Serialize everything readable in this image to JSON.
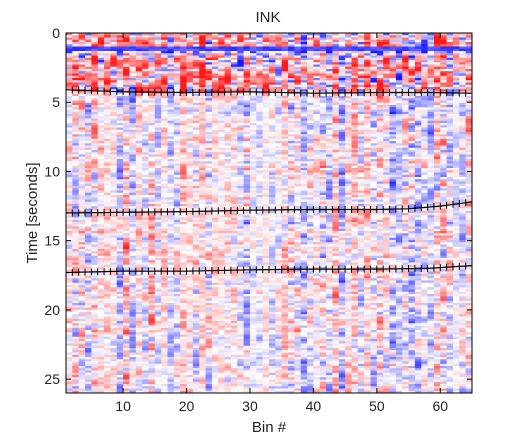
{
  "chart_data": {
    "type": "heatmap",
    "title": "INK",
    "xlabel": "Bin #",
    "ylabel": "Time [seconds]",
    "xlim": [
      1,
      65
    ],
    "ylim": [
      0,
      26
    ],
    "y_reversed": true,
    "xticks": [
      10,
      20,
      30,
      40,
      50,
      60
    ],
    "yticks": [
      0,
      5,
      10,
      15,
      20,
      25
    ],
    "colormap": {
      "negative": "#1f1fd6",
      "zero": "#ffffff",
      "positive": "#e01818"
    },
    "grid": false,
    "interface_picks": [
      {
        "name": "",
        "x": [
          1,
          10,
          20,
          30,
          40,
          50,
          58,
          65
        ],
        "y": [
          4.1,
          4.25,
          4.3,
          4.25,
          4.35,
          4.3,
          4.3,
          4.35
        ]
      },
      {
        "name": "",
        "x": [
          1,
          10,
          20,
          30,
          40,
          50,
          55,
          60,
          65
        ],
        "y": [
          13.0,
          12.95,
          12.9,
          12.8,
          12.75,
          12.75,
          12.7,
          12.5,
          12.2
        ]
      },
      {
        "name": "",
        "x": [
          1,
          10,
          20,
          30,
          40,
          50,
          58,
          65
        ],
        "y": [
          17.3,
          17.2,
          17.2,
          17.1,
          17.05,
          17.05,
          17.0,
          16.8
        ]
      }
    ]
  }
}
